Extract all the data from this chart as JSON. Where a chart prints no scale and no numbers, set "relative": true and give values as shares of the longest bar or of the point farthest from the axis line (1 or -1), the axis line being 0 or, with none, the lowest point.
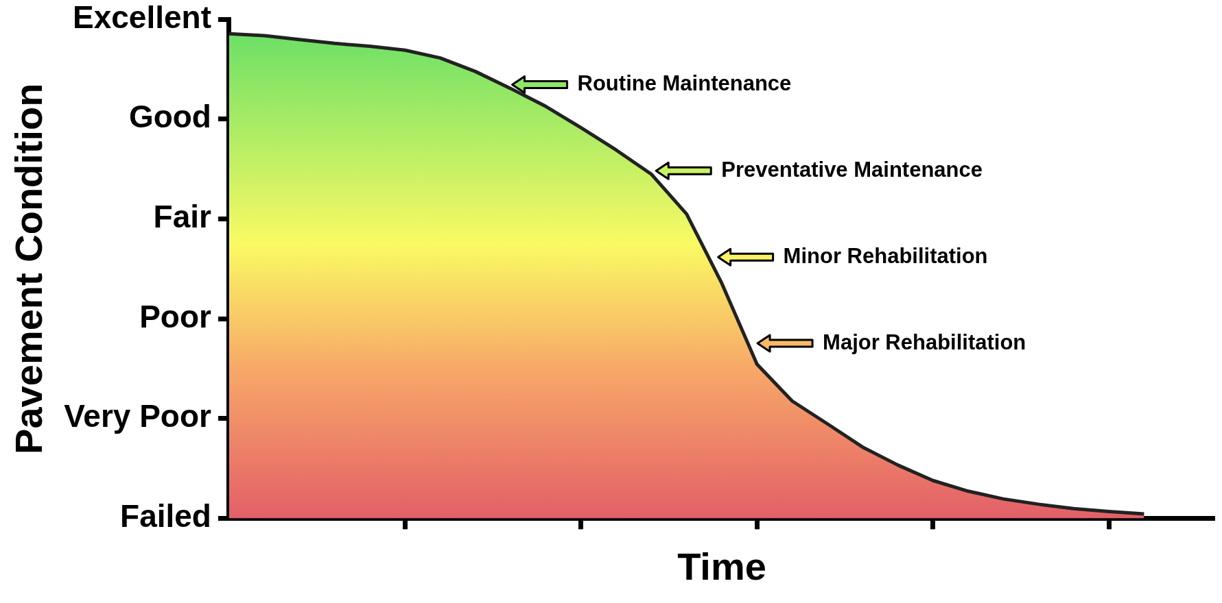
{
  "chart_data": {
    "type": "area",
    "xlabel": "Time",
    "ylabel": "Pavement Condition",
    "relative": true,
    "y_categories": [
      "Excellent",
      "Good",
      "Fair",
      "Poor",
      "Very Poor",
      "Failed"
    ],
    "categories": [
      null,
      null,
      null,
      null,
      null,
      null,
      null,
      null,
      null,
      null,
      null,
      null,
      null,
      null,
      null,
      null,
      null,
      null,
      null,
      null,
      null,
      null,
      null,
      null,
      null,
      null,
      null,
      null,
      null
    ],
    "series": [
      {
        "color": "#222222",
        "values": [
          1,
          0.996,
          0.988,
          0.98,
          0.974,
          0.966,
          0.95,
          0.922,
          0.887,
          0.85,
          0.806,
          0.76,
          0.71,
          0.628,
          0.485,
          0.318,
          0.242,
          0.195,
          0.147,
          0.11,
          0.078,
          0.056,
          0.04,
          0.029,
          0.02,
          0.014,
          0.009,
          null,
          null
        ]
      }
    ],
    "annotations": [
      "Routine Maintenance",
      "Preventative Maintenance",
      "Minor Rehabilitation",
      "Major Rehabilitation"
    ]
  }
}
